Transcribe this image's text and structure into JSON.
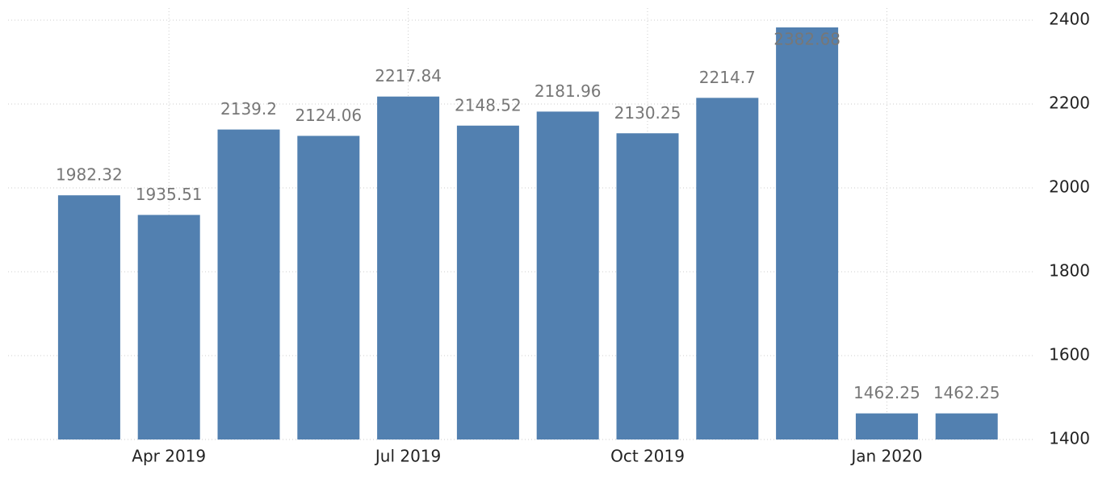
{
  "chart_data": {
    "type": "bar",
    "categories": [
      null,
      "Apr 2019",
      null,
      null,
      "Jul 2019",
      null,
      null,
      "Oct 2019",
      null,
      null,
      "Jan 2020",
      null
    ],
    "values": [
      1982.32,
      1935.51,
      2139.2,
      2124.06,
      2217.84,
      2148.52,
      2181.96,
      2130.25,
      2214.7,
      2382.68,
      1462.25,
      1462.25
    ],
    "color": "#5280b0",
    "ylim": [
      1400,
      2400
    ],
    "yticks": [
      1400,
      1600,
      1800,
      2000,
      2200,
      2400
    ],
    "grid": true
  }
}
